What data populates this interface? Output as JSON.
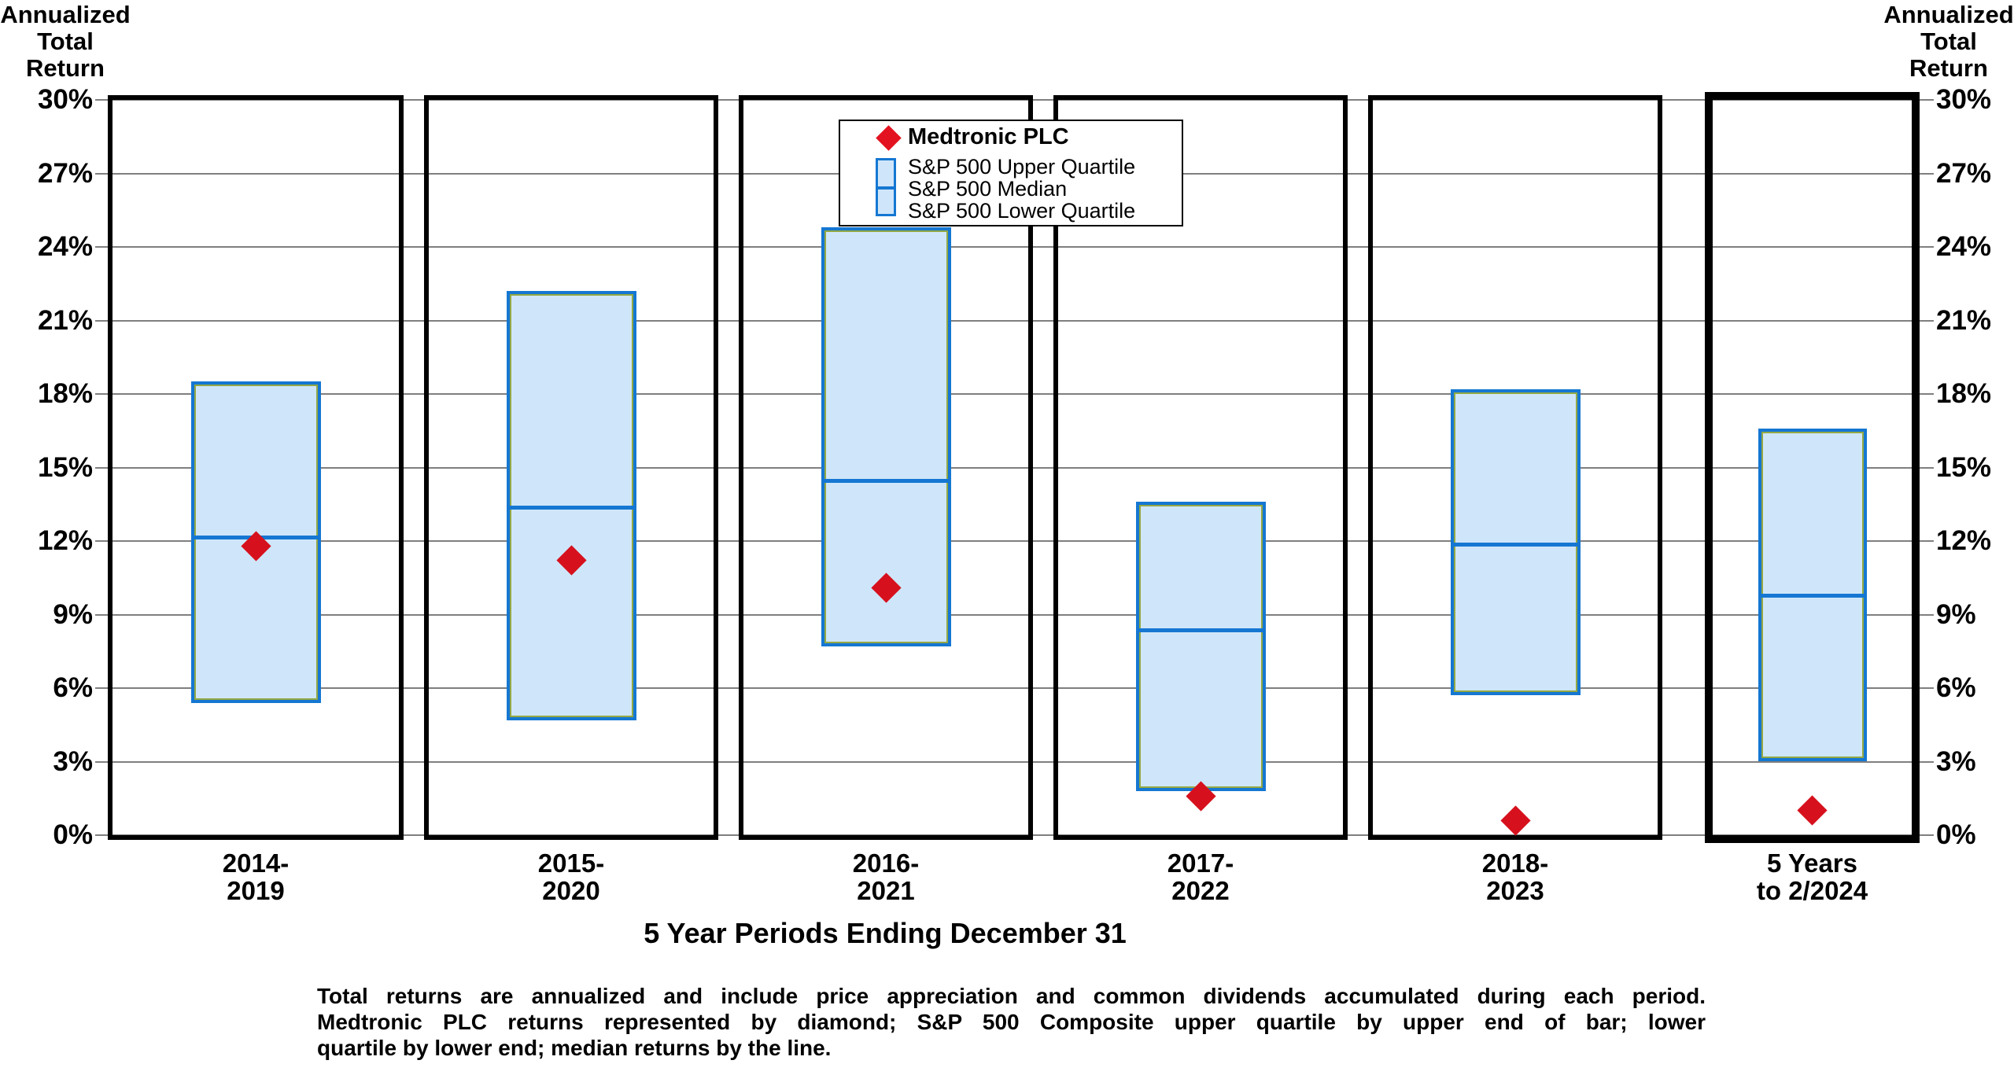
{
  "titles": {
    "left_axis": "Annualized\nTotal\nReturn",
    "right_axis": "Annualized\nTotal\nReturn",
    "x_axis": "5 Year Periods Ending December 31"
  },
  "legend": {
    "medtronic_label": "Medtronic PLC",
    "sp_labels": [
      "S&P 500 Upper Quartile",
      "S&P 500 Median",
      "S&P 500 Lower Quartile"
    ]
  },
  "footnote": {
    "lines": [
      "Total returns are annualized and include price appreciation and common dividends accumulated during each period.",
      "Medtronic PLC returns represented by diamond; S&P 500 Composite upper quartile by upper end of bar; lower",
      "quartile by lower end; median returns by the line."
    ]
  },
  "colors": {
    "bar_fill": "#cfe6fa",
    "bar_border": "#1577d2",
    "bar_inner_edge": "#93a843",
    "median_line": "#1577d2",
    "diamond_red": "#d6111d",
    "gridline_gray": "#7f7f7f",
    "panel_border": "#000000"
  },
  "chart_data": {
    "type": "bar",
    "subtype": "floating-quartile-range-bars-with-marker",
    "title": "",
    "xlabel": "5 Year Periods Ending December 31",
    "ylabel": "Annualized Total Return",
    "categories": [
      "2014-\n2019",
      "2015-\n2020",
      "2016-\n2021",
      "2017-\n2022",
      "2018-\n2023",
      "5 Years\nto 2/2024"
    ],
    "series": [
      {
        "name": "S&P 500 Upper Quartile",
        "role": "upper_quartile",
        "values": [
          18.5,
          22.2,
          24.8,
          13.6,
          18.2,
          16.6
        ]
      },
      {
        "name": "S&P 500 Median",
        "role": "median",
        "values": [
          12.3,
          13.5,
          14.6,
          8.5,
          12.0,
          9.9
        ]
      },
      {
        "name": "S&P 500 Lower Quartile",
        "role": "lower_quartile",
        "values": [
          5.4,
          4.7,
          7.7,
          1.8,
          5.7,
          3.0
        ]
      },
      {
        "name": "Medtronic PLC",
        "role": "marker",
        "values": [
          11.8,
          11.2,
          10.1,
          1.6,
          0.6,
          1.0
        ]
      }
    ],
    "ylim": [
      0,
      30
    ],
    "yticks": [
      0,
      3,
      6,
      9,
      12,
      15,
      18,
      21,
      24,
      27,
      30
    ],
    "ytick_suffix": "%",
    "grid": true,
    "legend_position": "top-center",
    "highlighted_panel_index": 5
  }
}
